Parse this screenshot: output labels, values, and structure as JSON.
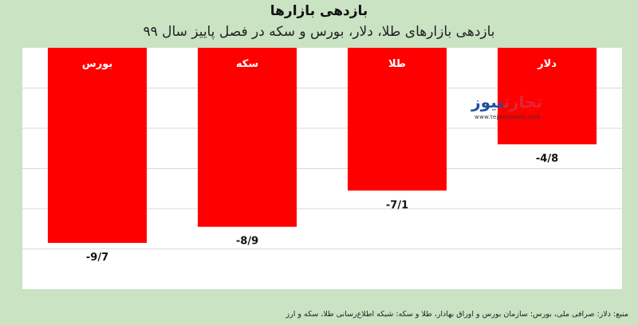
{
  "header": {
    "title": "بازدهی بازارها",
    "subtitle": "بازدهی بازارهای طلا، دلار، بورس و سکه در فصل پاییز سال ۹۹"
  },
  "source_note": "منبع: دلار: صرافی ملی، بورس: سازمان بورس و اوراق بهادار، طلا و سکه: شبکه اطلاع‌رسانی طلا، سکه و ارز",
  "logo": {
    "part1": "تجارت",
    "part2": "نیوز",
    "url": "www.tejaratnews.com"
  },
  "chart_data": {
    "type": "bar",
    "title": "بازدهی بازارها",
    "subtitle": "بازدهی بازارهای طلا، دلار، بورس و سکه در فصل پاییز سال ۹۹",
    "categories": [
      "بورس",
      "سکه",
      "طلا",
      "دلار"
    ],
    "values": [
      -9.7,
      -8.9,
      -7.1,
      -4.8
    ],
    "value_labels": [
      "-9/7",
      "-8/9",
      "-7/1",
      "-4/8"
    ],
    "ylim": [
      -12,
      0
    ],
    "bar_color": "#ff0000",
    "grid": true,
    "axis_labels_shown": false
  }
}
